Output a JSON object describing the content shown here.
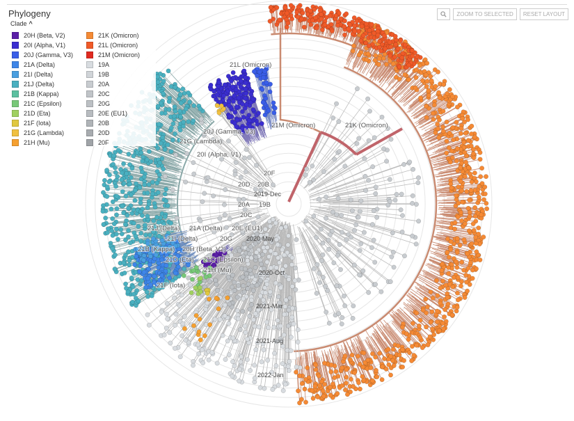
{
  "panel": {
    "title": "Phylogeny",
    "legend_label": "Clade",
    "chevron": "^"
  },
  "buttons": {
    "zoom_icon": "magnifier-icon",
    "zoom_selected": "ZOOM TO SELECTED",
    "reset_layout": "RESET LAYOUT"
  },
  "legend": [
    {
      "label": "20H (Beta, V2)",
      "color": "#5b1fa8"
    },
    {
      "label": "20I (Alpha, V1)",
      "color": "#3b2ed0"
    },
    {
      "label": "20J (Gamma, V3)",
      "color": "#3a5ee8"
    },
    {
      "label": "21A (Delta)",
      "color": "#3f86e8"
    },
    {
      "label": "21I (Delta)",
      "color": "#4a9fe0"
    },
    {
      "label": "21J (Delta)",
      "color": "#4ab0c0"
    },
    {
      "label": "21B (Kappa)",
      "color": "#5cc0a0"
    },
    {
      "label": "21C (Epsilon)",
      "color": "#78c878"
    },
    {
      "label": "21D (Eta)",
      "color": "#a0d060"
    },
    {
      "label": "21F (Iota)",
      "color": "#e0c840"
    },
    {
      "label": "21G (Lambda)",
      "color": "#f0c040"
    },
    {
      "label": "21H (Mu)",
      "color": "#f5a030"
    },
    {
      "label": "21K (Omicron)",
      "color": "#f58a35"
    },
    {
      "label": "21L (Omicron)",
      "color": "#f05a28"
    },
    {
      "label": "21M (Omicron)",
      "color": "#e02a20"
    },
    {
      "label": "19A",
      "color": "#d8dce0"
    },
    {
      "label": "19B",
      "color": "#d0d4d8"
    },
    {
      "label": "20A",
      "color": "#c8ccd0"
    },
    {
      "label": "20C",
      "color": "#c0c4c8"
    },
    {
      "label": "20G",
      "color": "#bcc0c4"
    },
    {
      "label": "20E (EU1)",
      "color": "#b8bcc0"
    },
    {
      "label": "20B",
      "color": "#b0b4b8"
    },
    {
      "label": "20D",
      "color": "#a8acb0"
    },
    {
      "label": "20F",
      "color": "#a0a4a8"
    }
  ],
  "clade_labels": {
    "l21L": "21L (Omicron)",
    "l21M": "21M (Omicron)",
    "l21K": "21K (Omicron)",
    "l20J": "20J (Gamma, V3)",
    "l21G": "21G (Lambda)",
    "l20I": "20I (Alpha, V1)",
    "l20F": "20F",
    "l20D": "20D",
    "l20B": "20B",
    "l20A": "20A",
    "l19B": "19B",
    "l20C": "20C",
    "l21J": "21J (Delta)",
    "l21A": "21A (Delta)",
    "l20E": "20E (EU1)",
    "l21I": "21I (Delta)",
    "l20G": "20G",
    "l21B": "21B (Kappa)",
    "l20H": "20H (Beta, V2)",
    "l21C": "21C (Epsilon)",
    "l21D": "21D (Eta)",
    "l21H": "21H (Mu)",
    "l21F": "21F (Iota)"
  },
  "time_labels": [
    "2019-Dec",
    "2020-May",
    "2020-Oct",
    "2021-Mar",
    "2021-Aug",
    "2022-Jan"
  ],
  "branch_colors": {
    "omicron": "#c98a70",
    "omicron_stem": "#c0646a",
    "grey": "#bbbbbb",
    "teal": "#8aa8a8"
  }
}
